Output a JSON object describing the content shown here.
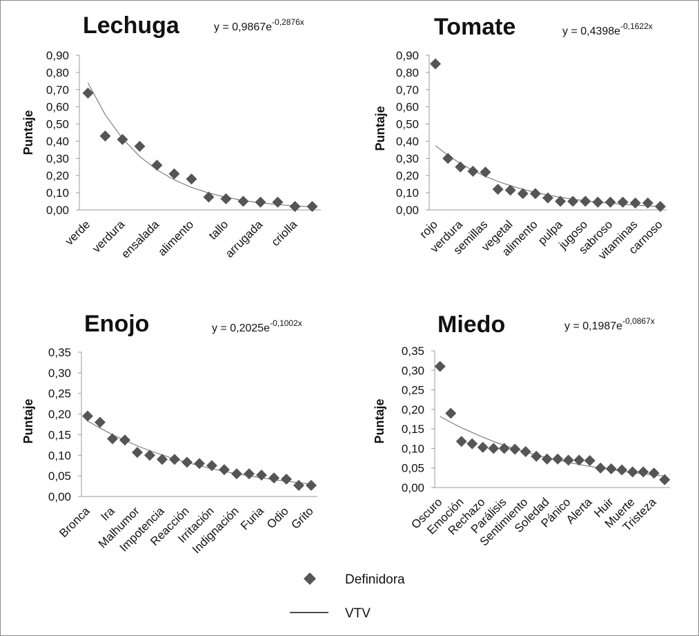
{
  "chart_data": [
    {
      "type": "scatter",
      "title": "Lechuga",
      "equation": "y = 0,9867e",
      "equation_exponent": "-0,2876x",
      "y_label": "Puntaje",
      "categories": [
        "verde",
        null,
        "verdura",
        null,
        "ensalada",
        null,
        "alimento",
        null,
        "tallo",
        null,
        "arrugada",
        null,
        "criolla",
        null
      ],
      "values": [
        0.68,
        0.43,
        0.41,
        0.37,
        0.26,
        0.21,
        0.18,
        0.075,
        0.065,
        0.05,
        0.045,
        0.045,
        0.02,
        0.02
      ],
      "trend": [
        0.739,
        0.554,
        0.415,
        0.311,
        0.233,
        0.175,
        0.131,
        0.0985,
        0.0738,
        0.0553,
        0.0414,
        0.031,
        0.0233,
        0.0174
      ],
      "ylim": [
        0,
        0.9
      ],
      "yticks": [
        {
          "value": 0,
          "label": "0,00"
        },
        {
          "value": 0.1,
          "label": "0,10"
        },
        {
          "value": 0.2,
          "label": "0,20"
        },
        {
          "value": 0.3,
          "label": "0,30"
        },
        {
          "value": 0.4,
          "label": "0,40"
        },
        {
          "value": 0.5,
          "label": "0,50"
        },
        {
          "value": 0.6,
          "label": "0,60"
        },
        {
          "value": 0.7,
          "label": "0,70"
        },
        {
          "value": 0.8,
          "label": "0,80"
        },
        {
          "value": 0.9,
          "label": "0,90"
        }
      ],
      "color": "#555555"
    },
    {
      "type": "scatter",
      "title": "Tomate",
      "equation": "y = 0,4398e",
      "equation_exponent": "-0,1622x",
      "y_label": "Puntaje",
      "categories": [
        "rojo",
        null,
        "verdura",
        null,
        "semillas",
        null,
        "vegetal",
        null,
        "alimento",
        null,
        "pulpa",
        null,
        "jugoso",
        null,
        "sabroso",
        null,
        "vitaminas",
        null,
        "carnoso"
      ],
      "values": [
        0.85,
        0.3,
        0.25,
        0.225,
        0.22,
        0.12,
        0.115,
        0.095,
        0.095,
        0.07,
        0.05,
        0.05,
        0.05,
        0.045,
        0.045,
        0.045,
        0.04,
        0.04,
        0.02
      ],
      "trend": [
        0.374,
        0.318,
        0.27,
        0.23,
        0.195,
        0.166,
        0.141,
        0.12,
        0.102,
        0.0867,
        0.0737,
        0.0626,
        0.0532,
        0.0452,
        0.0384,
        0.0327,
        0.0278,
        0.0236,
        0.02
      ],
      "ylim": [
        0,
        0.9
      ],
      "yticks": [
        {
          "value": 0,
          "label": "0,00"
        },
        {
          "value": 0.1,
          "label": "0,10"
        },
        {
          "value": 0.2,
          "label": "0,20"
        },
        {
          "value": 0.3,
          "label": "0,30"
        },
        {
          "value": 0.4,
          "label": "0,40"
        },
        {
          "value": 0.5,
          "label": "0,50"
        },
        {
          "value": 0.6,
          "label": "0,60"
        },
        {
          "value": 0.7,
          "label": "0,70"
        },
        {
          "value": 0.8,
          "label": "0,80"
        },
        {
          "value": 0.9,
          "label": "0,90"
        }
      ],
      "color": "#555555"
    },
    {
      "type": "scatter",
      "title": "Enojo",
      "equation": "y = 0,2025e",
      "equation_exponent": "-0,1002x",
      "y_label": "Puntaje",
      "categories": [
        "Bronca",
        null,
        "Ira",
        null,
        "Malhumor",
        null,
        "Impotencia",
        null,
        "Reacción",
        null,
        "Irritación",
        null,
        "Indignación",
        null,
        "Furia",
        null,
        "Odio",
        null,
        "Grito"
      ],
      "values": [
        0.195,
        0.18,
        0.14,
        0.137,
        0.107,
        0.1,
        0.09,
        0.09,
        0.083,
        0.08,
        0.075,
        0.065,
        0.055,
        0.055,
        0.052,
        0.045,
        0.042,
        0.027,
        0.027
      ],
      "trend": [
        0.183,
        0.166,
        0.15,
        0.136,
        0.123,
        0.111,
        0.101,
        0.0911,
        0.0824,
        0.0746,
        0.0675,
        0.061,
        0.0552,
        0.05,
        0.0452,
        0.0409,
        0.037,
        0.0335,
        0.0303
      ],
      "ylim": [
        0,
        0.35
      ],
      "yticks": [
        {
          "value": 0,
          "label": "0,00"
        },
        {
          "value": 0.05,
          "label": "0,05"
        },
        {
          "value": 0.1,
          "label": "0,10"
        },
        {
          "value": 0.15,
          "label": "0,15"
        },
        {
          "value": 0.2,
          "label": "0,20"
        },
        {
          "value": 0.25,
          "label": "0,25"
        },
        {
          "value": 0.3,
          "label": "0,30"
        },
        {
          "value": 0.35,
          "label": "0,35"
        }
      ],
      "color": "#555555"
    },
    {
      "type": "scatter",
      "title": "Miedo",
      "equation": "y = 0,1987e",
      "equation_exponent": "-0,0867x",
      "y_label": "Puntaje",
      "categories": [
        "Oscuro",
        null,
        "Emoción",
        null,
        "Rechazo",
        null,
        "Parálisis",
        null,
        "Sentimiento",
        null,
        "Soledad",
        null,
        "Pánico",
        null,
        "Alerta",
        null,
        "Huir",
        null,
        "Muerte",
        null,
        "Tristeza",
        null
      ],
      "values": [
        0.31,
        0.19,
        0.118,
        0.112,
        0.103,
        0.1,
        0.1,
        0.098,
        0.092,
        0.08,
        0.073,
        0.073,
        0.07,
        0.07,
        0.069,
        0.05,
        0.048,
        0.045,
        0.04,
        0.04,
        0.037,
        0.02
      ],
      "trend": [
        0.182,
        0.167,
        0.153,
        0.141,
        0.129,
        0.118,
        0.108,
        0.0993,
        0.091,
        0.0834,
        0.0765,
        0.0702,
        0.0643,
        0.059,
        0.0541,
        0.0496,
        0.0455,
        0.0417,
        0.0382,
        0.035,
        0.0321,
        0.0295
      ],
      "ylim": [
        0,
        0.35
      ],
      "yticks": [
        {
          "value": 0,
          "label": "0,00"
        },
        {
          "value": 0.05,
          "label": "0,05"
        },
        {
          "value": 0.1,
          "label": "0,10"
        },
        {
          "value": 0.15,
          "label": "0,15"
        },
        {
          "value": 0.2,
          "label": "0,20"
        },
        {
          "value": 0.25,
          "label": "0,25"
        },
        {
          "value": 0.3,
          "label": "0,30"
        },
        {
          "value": 0.35,
          "label": "0,35"
        }
      ],
      "color": "#555555"
    }
  ],
  "legend": [
    {
      "name": "Definidora",
      "color": "#555555"
    },
    {
      "name": "VTV",
      "color": "#111111"
    }
  ]
}
